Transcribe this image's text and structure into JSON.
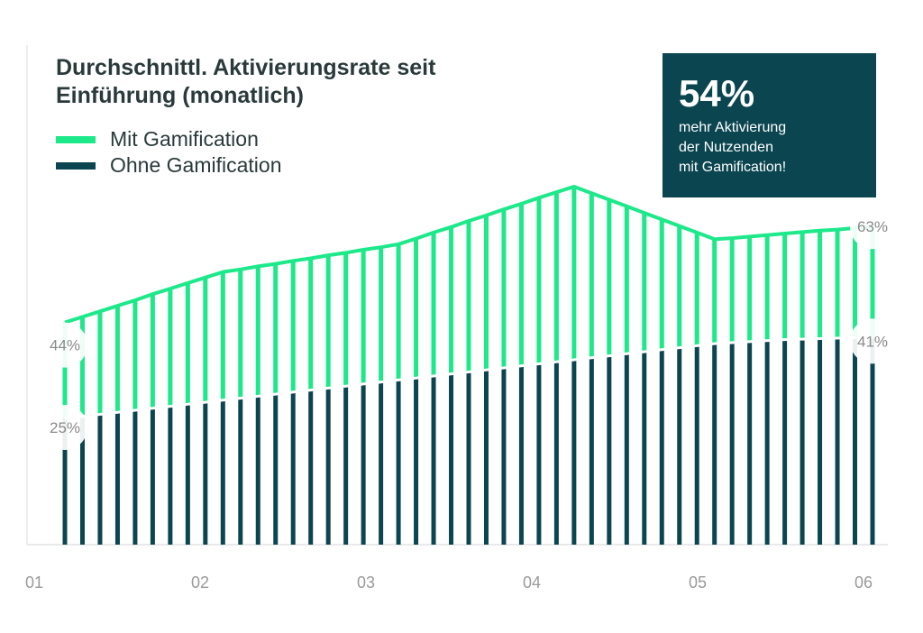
{
  "chart_data": {
    "type": "bar",
    "title": "Durchschnittl. Aktivierungsrate seit Einführung (monatlich)",
    "x_ticks": [
      "01",
      "02",
      "03",
      "04",
      "05",
      "06"
    ],
    "ylim": [
      0,
      70
    ],
    "unit": "%",
    "series": [
      {
        "name": "Mit Gamification",
        "color": "#1de88a",
        "values": [
          44,
          45.1,
          46.2,
          47.3,
          48.4,
          49.6,
          50.7,
          51.8,
          52.9,
          54,
          54.5,
          55.1,
          55.6,
          56.2,
          56.7,
          57.3,
          57.8,
          58.4,
          58.9,
          59.5,
          60.6,
          61.8,
          62.9,
          64.1,
          65.2,
          66.4,
          67.5,
          68.7,
          69.8,
          70.9,
          69.6,
          68.3,
          67,
          65.7,
          64.4,
          63.1,
          61.8,
          60.5,
          60.7,
          61,
          61.3,
          61.6,
          61.9,
          62.2,
          62.4,
          62.7,
          63
        ],
        "labels": {
          "first": "44%",
          "last": "63%"
        }
      },
      {
        "name": "Ohne Gamification",
        "color": "#0b4550",
        "values": [
          25,
          25.4,
          25.8,
          26.2,
          26.6,
          27,
          27.4,
          27.8,
          28.2,
          28.6,
          29,
          29.4,
          29.8,
          30.2,
          30.6,
          31,
          31.4,
          31.8,
          32.2,
          32.6,
          33,
          33.4,
          33.8,
          34.2,
          34.6,
          35,
          35.4,
          35.8,
          36.2,
          36.6,
          37,
          37.4,
          37.8,
          38.2,
          38.6,
          39,
          39.4,
          39.8,
          40,
          40.2,
          40.4,
          40.6,
          40.7,
          40.8,
          40.9,
          41,
          41
        ],
        "labels": {
          "first": "25%",
          "last": "41%"
        }
      }
    ],
    "grid": false,
    "legend_position": "top-left"
  },
  "callout": {
    "value": "54%",
    "text": "mehr Aktivierung\nder Nutzenden\nmit Gamification!",
    "background": "#0b4550"
  }
}
